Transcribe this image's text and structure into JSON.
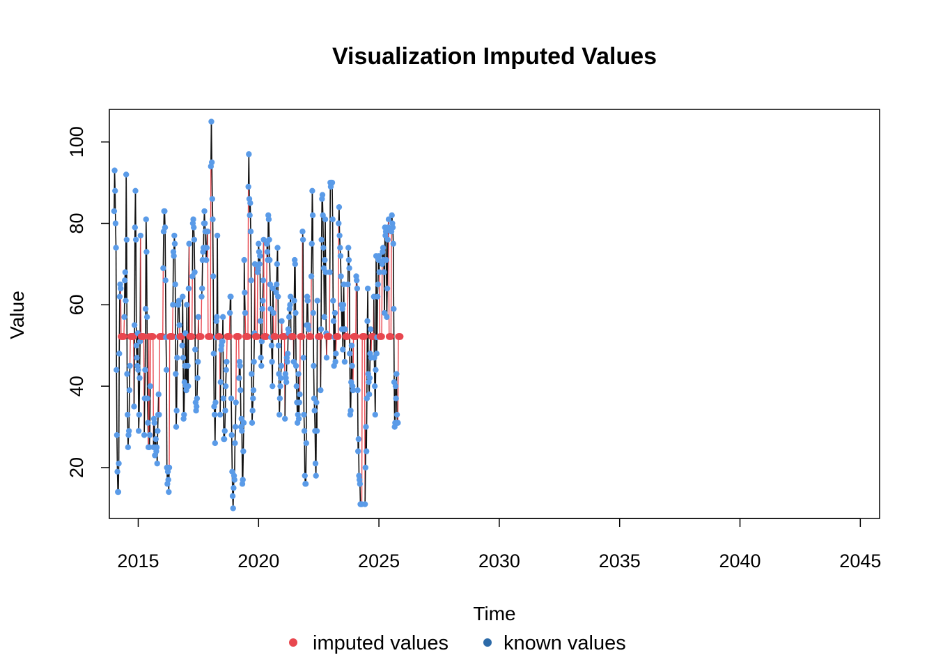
{
  "chart_data": {
    "type": "line",
    "title": "Visualization Imputed Values",
    "xlabel": "Time",
    "ylabel": "Value",
    "xlim": [
      2013.8,
      2045.8
    ],
    "ylim": [
      7.5,
      108
    ],
    "x_ticks": [
      2015,
      2020,
      2025,
      2030,
      2035,
      2040,
      2045
    ],
    "y_ticks": [
      20,
      40,
      60,
      80,
      100
    ],
    "frequency": 52,
    "start": 2014,
    "imputed_value": 52.2,
    "legend": {
      "position": "bottom",
      "entries": [
        {
          "label": "imputed values",
          "color": "#e8474f"
        },
        {
          "label": "known values",
          "color": "#2c6aa8"
        }
      ]
    },
    "colors": {
      "known_line": "#111111",
      "imputed_line": "#e8474f",
      "known_point": "#5a9be8",
      "imputed_point": "#e8474f"
    },
    "series": [
      {
        "values": [
          83,
          93,
          88,
          80,
          74,
          44,
          28,
          19,
          14,
          14,
          21,
          48,
          62,
          65,
          64,
          null,
          null,
          null,
          null,
          null,
          null,
          null,
          57,
          66,
          68,
          61,
          92,
          76,
          43,
          33,
          25,
          28,
          29,
          39,
          45,
          null,
          null,
          null,
          null,
          null,
          null,
          null,
          null,
          35,
          55,
          79,
          88,
          76,
          50,
          47,
          45,
          53,
          44,
          29,
          33,
          42,
          51,
          77,
          null,
          null,
          null,
          null,
          null,
          null,
          null,
          28,
          37,
          44,
          59,
          81,
          73,
          57,
          37,
          31,
          25,
          null,
          25,
          28,
          40,
          null,
          null,
          null,
          null,
          null,
          null,
          25,
          32,
          31,
          23,
          25,
          27,
          24,
          25,
          21,
          29,
          33,
          38,
          33,
          null,
          null,
          null,
          null,
          null,
          null,
          null,
          null,
          69,
          78,
          83,
          83,
          79,
          66,
          52,
          44,
          20,
          16,
          19,
          17,
          14,
          20,
          null,
          null,
          null,
          null,
          null,
          null,
          null,
          60,
          73,
          72,
          77,
          75,
          65,
          43,
          30,
          34,
          47,
          52,
          60,
          60,
          61,
          55,
          null,
          null,
          null,
          null,
          null,
          50,
          62,
          47,
          32,
          33,
          41,
          45,
          53,
          40,
          39,
          60,
          40,
          45,
          40,
          64,
          75,
          null,
          null,
          null,
          null,
          null,
          null,
          67,
          80,
          81,
          79,
          76,
          68,
          49,
          36,
          34,
          35,
          37,
          42,
          46,
          57,
          null,
          null,
          null,
          null,
          null,
          null,
          62,
          64,
          71,
          73,
          74,
          80,
          83,
          80,
          78,
          74,
          71,
          74,
          78,
          78,
          null,
          null,
          null,
          null,
          null,
          null,
          94,
          105,
          95,
          86,
          81,
          67,
          48,
          35,
          33,
          26,
          36,
          52,
          56,
          57,
          77,
          52,
          null,
          null,
          null,
          null,
          33,
          41,
          49,
          50,
          51,
          51,
          57,
          37,
          27,
          27,
          29,
          34,
          40,
          44,
          46,
          null,
          null,
          null,
          null,
          null,
          null,
          58,
          62,
          62,
          37,
          28,
          19,
          13,
          10,
          15,
          18,
          17,
          26,
          30,
          36,
          null,
          null,
          null,
          null,
          null,
          null,
          42,
          46,
          45,
          39,
          30,
          32,
          29,
          16,
          17,
          24,
          31,
          71,
          63,
          58,
          null,
          null,
          null,
          null,
          null,
          null,
          89,
          97,
          86,
          82,
          85,
          78,
          66,
          43,
          31,
          34,
          37,
          39,
          46,
          53,
          70,
          null,
          null,
          null,
          null,
          null,
          68,
          69,
          75,
          73,
          70,
          72,
          56,
          47,
          45,
          51,
          59,
          61,
          66,
          76,
          null,
          null,
          null,
          null,
          null,
          null,
          75,
          73,
          71,
          82,
          81,
          76,
          71,
          65,
          59,
          52,
          50,
          46,
          40,
          64,
          58,
          null,
          null,
          null,
          null,
          null,
          63,
          65,
          70,
          74,
          62,
          50,
          43,
          33,
          37,
          40,
          42,
          45,
          56,
          null,
          null,
          null,
          null,
          null,
          null,
          32,
          43,
          42,
          41,
          47,
          46,
          48,
          54,
          53,
          57,
          59,
          60,
          62,
          52,
          null,
          null,
          null,
          null,
          null,
          46,
          61,
          71,
          70,
          58,
          45,
          40,
          36,
          31,
          33,
          43,
          32,
          36,
          38,
          null,
          null,
          null,
          null,
          null,
          78,
          76,
          47,
          33,
          29,
          18,
          16,
          16,
          26,
          55,
          62,
          61,
          55,
          54,
          null,
          null,
          null,
          null,
          null,
          67,
          75,
          88,
          82,
          58,
          45,
          37,
          34,
          29,
          21,
          18,
          36,
          29,
          61,
          52,
          null,
          null,
          null,
          null,
          null,
          39,
          54,
          76,
          86,
          87,
          82,
          74,
          69,
          57,
          71,
          81,
          68,
          53,
          47,
          null,
          null,
          null,
          null,
          null,
          null,
          68,
          90,
          89,
          90,
          90,
          90,
          81,
          61,
          56,
          45,
          52,
          58,
          46,
          48,
          null,
          null,
          null,
          null,
          null,
          80,
          84,
          77,
          74,
          72,
          67,
          60,
          54,
          59,
          49,
          60,
          65,
          54,
          46,
          54,
          null,
          null,
          null,
          null,
          null,
          65,
          74,
          71,
          69,
          48,
          33,
          34,
          41,
          50,
          45,
          40,
          39,
          null,
          null,
          null,
          null,
          null,
          null,
          67,
          66,
          64,
          39,
          24,
          27,
          18,
          17,
          16,
          11,
          11,
          11,
          11,
          null,
          null,
          null,
          null,
          null,
          null,
          11,
          20,
          30,
          24,
          37,
          56,
          64,
          43,
          41,
          38,
          42,
          48,
          54,
          47,
          null,
          null,
          null,
          null,
          null,
          62,
          47,
          40,
          33,
          44,
          72,
          48,
          52,
          62,
          65,
          71,
          72,
          68,
          null,
          null,
          null,
          null,
          null,
          70,
          73,
          74,
          71,
          68,
          58,
          79,
          77,
          78,
          71,
          57,
          64,
          76,
          79,
          81,
          null,
          null,
          null,
          null,
          null,
          78,
          82,
          80,
          79,
          75,
          59,
          41,
          30,
          31,
          40,
          37,
          43,
          33,
          31,
          31,
          null,
          null,
          null,
          null,
          null
        ]
      }
    ]
  }
}
